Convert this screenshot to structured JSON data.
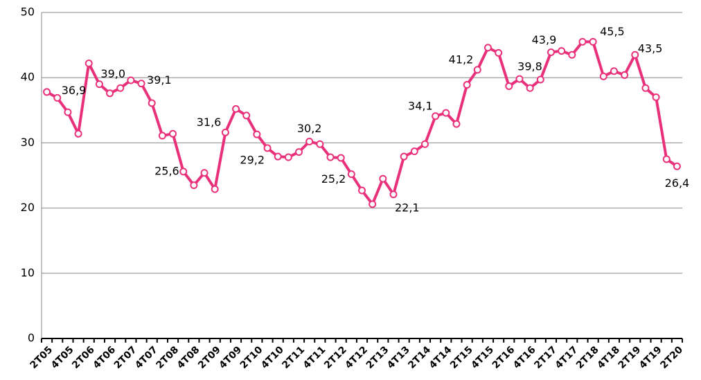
{
  "chart_data": {
    "type": "line",
    "categories": [
      "2T05",
      null,
      "4T05",
      null,
      "2T06",
      null,
      "4T06",
      null,
      "2T07",
      null,
      "4T07",
      null,
      "2T08",
      null,
      "4T08",
      null,
      "2T09",
      null,
      "4T09",
      null,
      "2T10",
      null,
      "4T10",
      null,
      "2T11",
      null,
      "4T11",
      null,
      "2T12",
      null,
      "4T12",
      null,
      "2T13",
      null,
      "4T13",
      null,
      "2T14",
      null,
      "4T14",
      null,
      "2T15",
      null,
      "4T15",
      null,
      "2T16",
      null,
      "4T16",
      null,
      "2T17",
      null,
      "4T17",
      null,
      "2T18",
      null,
      "4T18",
      null,
      "2T19",
      null,
      "4T19",
      null,
      "2T20"
    ],
    "values": [
      37.8,
      36.9,
      34.7,
      31.4,
      42.2,
      39.0,
      37.6,
      38.4,
      39.6,
      39.1,
      36.1,
      31.1,
      31.4,
      25.6,
      23.5,
      25.4,
      22.9,
      31.6,
      35.2,
      34.2,
      31.3,
      29.2,
      27.9,
      27.8,
      28.6,
      30.2,
      29.8,
      27.8,
      27.7,
      25.2,
      22.7,
      20.6,
      24.5,
      22.1,
      27.9,
      28.7,
      29.8,
      34.1,
      34.6,
      32.9,
      38.9,
      41.2,
      44.6,
      43.8,
      38.7,
      39.8,
      38.4,
      39.7,
      43.9,
      44.1,
      43.5,
      45.5,
      45.5,
      40.2,
      41.0,
      40.4,
      43.5,
      38.4,
      37.0,
      27.5,
      26.4
    ],
    "value_labels": [
      null,
      "36,9",
      null,
      null,
      null,
      "39,0",
      null,
      null,
      null,
      "39,1",
      null,
      null,
      null,
      "25,6",
      null,
      null,
      null,
      "31,6",
      null,
      null,
      null,
      "29,2",
      null,
      null,
      null,
      "30,2",
      null,
      null,
      null,
      "25,2",
      null,
      null,
      null,
      "22,1",
      null,
      null,
      null,
      "34,1",
      null,
      null,
      null,
      "41,2",
      null,
      null,
      null,
      "39,8",
      null,
      null,
      "43,9",
      null,
      null,
      null,
      "45,5",
      null,
      null,
      null,
      "43,5",
      null,
      null,
      null,
      "26,4"
    ],
    "color": "#e8317a",
    "ylim": [
      0,
      50
    ],
    "yticks": [
      0,
      10,
      20,
      30,
      40,
      50
    ],
    "grid": true
  }
}
